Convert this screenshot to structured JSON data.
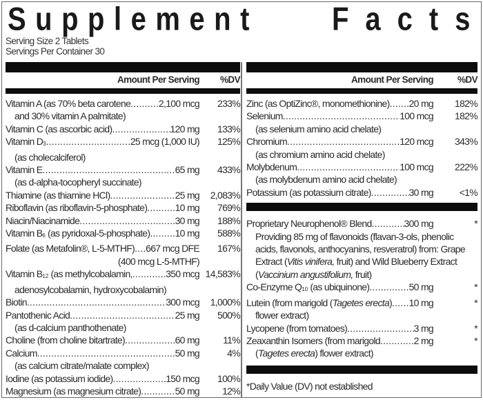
{
  "title": {
    "word1": "Supplement",
    "word2": "Facts"
  },
  "serving_size": "Serving Size 2 Tablets",
  "servings_per_container": "Servings Per Container 30",
  "header": {
    "amount": "Amount Per Serving",
    "dv": "%DV"
  },
  "left": {
    "vitA": {
      "name": "Vitamin A (as 70% beta carotene",
      "amt": "2,100 mcg",
      "dv": "233%",
      "sub": "and 30% vitamin A palmitate)"
    },
    "vitC": {
      "name": "Vitamin C (as ascorbic acid)",
      "amt": "120 mg",
      "dv": "133%"
    },
    "vitD": {
      "name": "Vitamin D",
      "subscript": "3",
      "amt": "25 mcg (1,000 IU)",
      "dv": "125%",
      "sub": "(as cholecalciferol)"
    },
    "vitE": {
      "name": "Vitamin E",
      "amt": "65 mg",
      "dv": "433%",
      "sub": "(as d-alpha-tocopheryl succinate)"
    },
    "thiamine": {
      "name": "Thiamine (as thiamine HCl)",
      "amt": "25 mg",
      "dv": "2,083%"
    },
    "riboflavin": {
      "name": "Riboflavin (as riboflavin-5-phosphate)",
      "amt": "10 mg",
      "dv": "769%"
    },
    "niacin": {
      "name": "Niacin/Niacinamide",
      "amt": "30 mg",
      "dv": "188%"
    },
    "vitB6": {
      "name": "Vitamin B",
      "subscript": "6",
      "name2": " (as pyridoxal-5-phosphate)",
      "amt": "10 mg",
      "dv": "588%"
    },
    "folate": {
      "name": "Folate (as Metafolin®, L-5-MTHF)",
      "amt": "667 mcg DFE",
      "dv": "167%",
      "sub": "(400 mcg L-5-MTHF)"
    },
    "vitB12": {
      "name": "Vitamin B",
      "subscript": "12",
      "name2": " (as methylcobalamin,",
      "amt": "350 mcg",
      "dv": "14,583%",
      "sub": "adenosylcobalamin, hydroxycobalamin)"
    },
    "biotin": {
      "name": "Biotin",
      "amt": "300 mcg",
      "dv": "1,000%"
    },
    "pantothenic": {
      "name": "Pantothenic Acid",
      "amt": "25 mg",
      "dv": "500%",
      "sub": "(as d-calcium panthothenate)"
    },
    "choline": {
      "name": "Choline (from choline bitartrate)",
      "amt": "60 mg",
      "dv": "11%"
    },
    "calcium": {
      "name": "Calcium",
      "amt": "50 mg",
      "dv": "4%",
      "sub": "(as calcium citrate/malate complex)"
    },
    "iodine": {
      "name": "Iodine (as potassium iodide)",
      "amt": "150 mcg",
      "dv": "100%"
    },
    "magnesium": {
      "name": "Magnesium (as magnesium citrate)",
      "amt": "50 mg",
      "dv": "12%"
    }
  },
  "right": {
    "zinc": {
      "name": "Zinc (as OptiZinc®, monomethionine)",
      "amt": "20 mg",
      "dv": "182%"
    },
    "selenium": {
      "name": "Selenium",
      "amt": "100 mcg",
      "dv": "182%",
      "sub": "(as selenium amino acid chelate)"
    },
    "chromium": {
      "name": "Chromium",
      "amt": "120 mcg",
      "dv": "343%",
      "sub": "(as chromium amino acid chelate)"
    },
    "molybdenum": {
      "name": "Molybdenum",
      "amt": "100 mcg",
      "dv": "222%",
      "sub": "(as molybdenum amino acid chelate)"
    },
    "potassium": {
      "name": "Potassium (as potassium citrate)",
      "amt": "30 mg",
      "dv": "<1%"
    },
    "blend": {
      "name": "Proprietary Neurophenol® Blend",
      "amt": "300 mg",
      "dv": "*",
      "sub_a": "Providing 85 mg of flavonoids (flavan-3-ols, phenolic acids, flavonols, anthocyanins, resveratrol) from: Grape Extract (",
      "sub_b": "Vitis vinifera,",
      "sub_c": " fruit) and Wild Blueberry Extract (",
      "sub_d": "Vaccinium angustifolium,",
      "sub_e": " fruit)"
    },
    "coq10": {
      "name": "Co-Enzyme Q",
      "subscript": "10",
      "name2": " (as ubiquinone)",
      "amt": "50 mg",
      "dv": "*"
    },
    "lutein": {
      "name": "Lutein (from marigold (",
      "italic": "Tagetes erecta",
      "name2": ")",
      "amt": "10 mg",
      "dv": "*",
      "sub": "flower extract)"
    },
    "lycopene": {
      "name": "Lycopene (from tomatoes)",
      "amt": "3 mg",
      "dv": "*"
    },
    "zeaxanthin": {
      "name": "Zeaxanthin Isomers (from marigold",
      "amt": "2 mg",
      "dv": "*",
      "sub_a": "(",
      "sub_italic": "Tagetes erecta",
      "sub_b": ") flower extract)"
    }
  },
  "footnote": "*Daily Value (DV) not established"
}
